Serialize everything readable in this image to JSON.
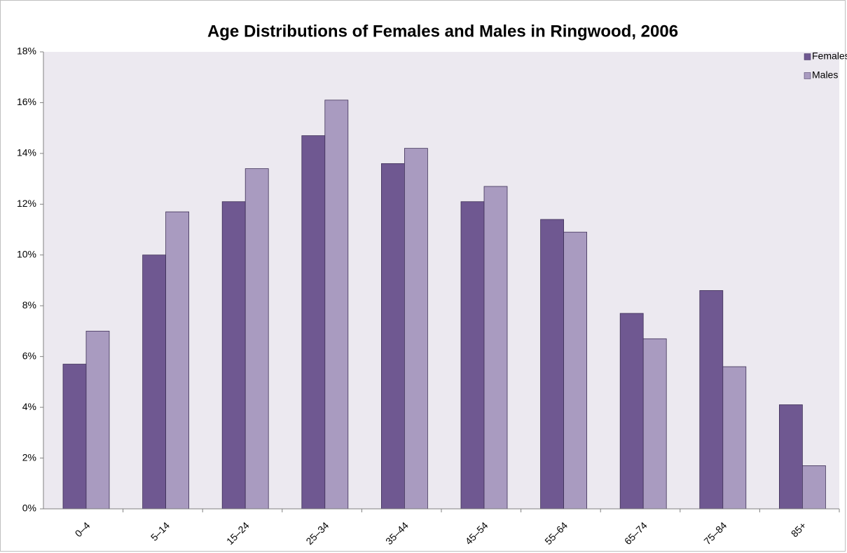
{
  "chart_data": {
    "type": "bar",
    "title": "Age Distributions of Females and Males in Ringwood, 2006",
    "categories": [
      "0–4",
      "5–14",
      "15–24",
      "25–34",
      "35–44",
      "45–54",
      "55–64",
      "65–74",
      "75–84",
      "85+"
    ],
    "series": [
      {
        "name": "Females",
        "color": "#6f5891",
        "values": [
          5.7,
          10.0,
          12.1,
          14.7,
          13.6,
          12.1,
          11.4,
          7.7,
          8.6,
          4.1
        ]
      },
      {
        "name": "Males",
        "color": "#a99bc0",
        "values": [
          7.0,
          11.7,
          13.4,
          16.1,
          14.2,
          12.7,
          10.9,
          6.7,
          5.6,
          1.7
        ]
      }
    ],
    "ylim": [
      0,
      18
    ],
    "yticks": [
      {
        "value": 0,
        "label": "0%"
      },
      {
        "value": 2,
        "label": "2%"
      },
      {
        "value": 4,
        "label": "4%"
      },
      {
        "value": 6,
        "label": "6%"
      },
      {
        "value": 8,
        "label": "8%"
      },
      {
        "value": 10,
        "label": "10%"
      },
      {
        "value": 12,
        "label": "12%"
      },
      {
        "value": 14,
        "label": "14%"
      },
      {
        "value": 16,
        "label": "16%"
      },
      {
        "value": 18,
        "label": "18%"
      }
    ],
    "legend": "top-right"
  }
}
